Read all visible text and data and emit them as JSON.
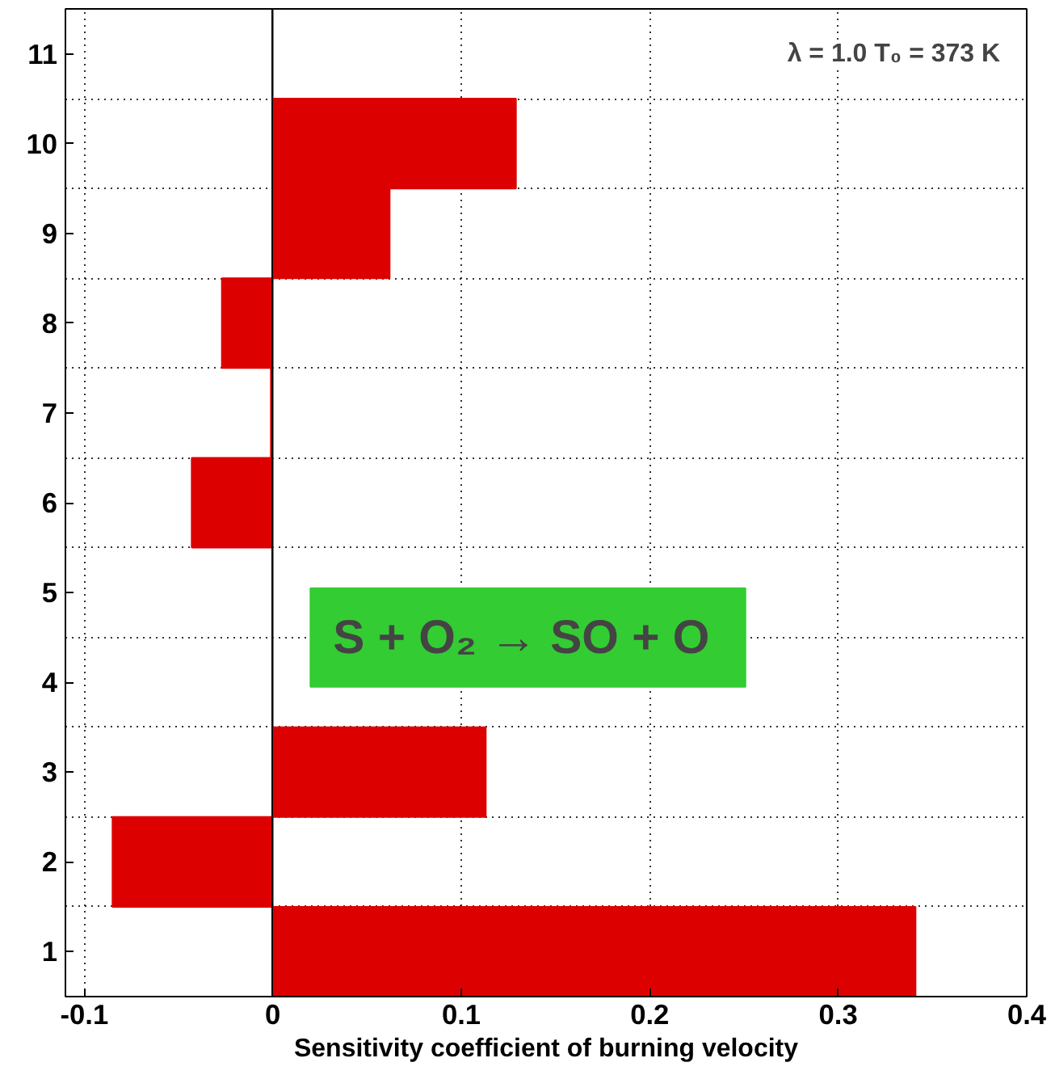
{
  "chart_data": {
    "type": "bar",
    "orientation": "horizontal",
    "xlabel": "Sensitivity coefficient of burning velocity",
    "categories": [
      "11",
      "10",
      "9",
      "8",
      "7",
      "6",
      "5",
      "4",
      "3",
      "2",
      "1"
    ],
    "values": [
      0.0,
      0.129,
      0.062,
      -0.027,
      -0.001,
      -0.043,
      0.0,
      0.0,
      0.113,
      -0.085,
      0.341
    ],
    "color": "#dd0000",
    "xlim": [
      -0.11,
      0.4
    ],
    "xticks": [
      -0.1,
      0,
      0.1,
      0.2,
      0.3,
      0.4
    ],
    "grid": true,
    "annotations": [
      "λ = 1.0  T₀ = 373 K",
      "S + O₂ →  SO + O"
    ]
  }
}
